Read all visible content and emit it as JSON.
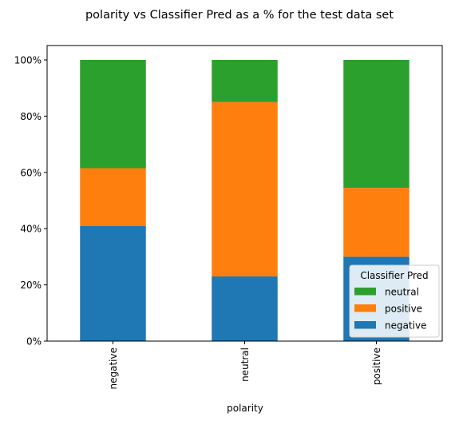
{
  "chart_data": {
    "type": "bar",
    "stacked": true,
    "title": "polarity vs Classifier Pred as a % for the test data set",
    "xlabel": "polarity",
    "ylabel": "",
    "categories": [
      "negative",
      "neutral",
      "positive"
    ],
    "ylim": [
      0,
      1
    ],
    "yticks": [
      {
        "value": 0,
        "label": "0%"
      },
      {
        "value": 0.2,
        "label": "20%"
      },
      {
        "value": 0.4,
        "label": "40%"
      },
      {
        "value": 0.6,
        "label": "60%"
      },
      {
        "value": 0.8,
        "label": "80%"
      },
      {
        "value": 1.0,
        "label": "100%"
      }
    ],
    "series": [
      {
        "name": "negative",
        "color": "#1f77b4",
        "values": [
          0.41,
          0.23,
          0.3
        ]
      },
      {
        "name": "positive",
        "color": "#ff7f0e",
        "values": [
          0.205,
          0.62,
          0.245
        ]
      },
      {
        "name": "neutral",
        "color": "#2ca02c",
        "values": [
          0.385,
          0.15,
          0.455
        ]
      }
    ],
    "legend": {
      "title": "Classifier Pred",
      "placement": "bottom-right",
      "order": [
        "neutral",
        "positive",
        "negative"
      ]
    },
    "grid": false
  }
}
